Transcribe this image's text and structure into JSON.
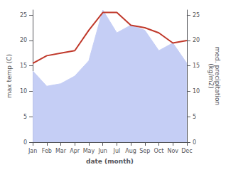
{
  "chart_data": {
    "type": "line",
    "categories": [
      "Jan",
      "Feb",
      "Mar",
      "Apr",
      "May",
      "Jun",
      "Jul",
      "Aug",
      "Sep",
      "Oct",
      "Nov",
      "Dec"
    ],
    "series": [
      {
        "type": "line",
        "color": "#c0392b",
        "axis": "y",
        "values": [
          15.5,
          17.0,
          17.5,
          18.0,
          22.0,
          25.5,
          25.5,
          23.0,
          22.5,
          21.5,
          19.5,
          20.0
        ]
      },
      {
        "type": "area",
        "color": "#c5cef5",
        "axis": "y2",
        "values": [
          14.0,
          11.0,
          11.5,
          13.0,
          16.0,
          26.0,
          21.5,
          23.0,
          22.0,
          18.0,
          19.5,
          15.5
        ]
      }
    ],
    "xlabel": "date (month)",
    "ylabel": "max temp (C)",
    "y2label": "med. precipitation\n(kg/m2)",
    "ylim": [
      0,
      26
    ],
    "yticks": [
      0,
      5,
      10,
      15,
      20,
      25
    ],
    "y2lim": [
      0,
      26
    ],
    "y2ticks": [
      0,
      5,
      10,
      15,
      20,
      25
    ],
    "grid": false
  }
}
